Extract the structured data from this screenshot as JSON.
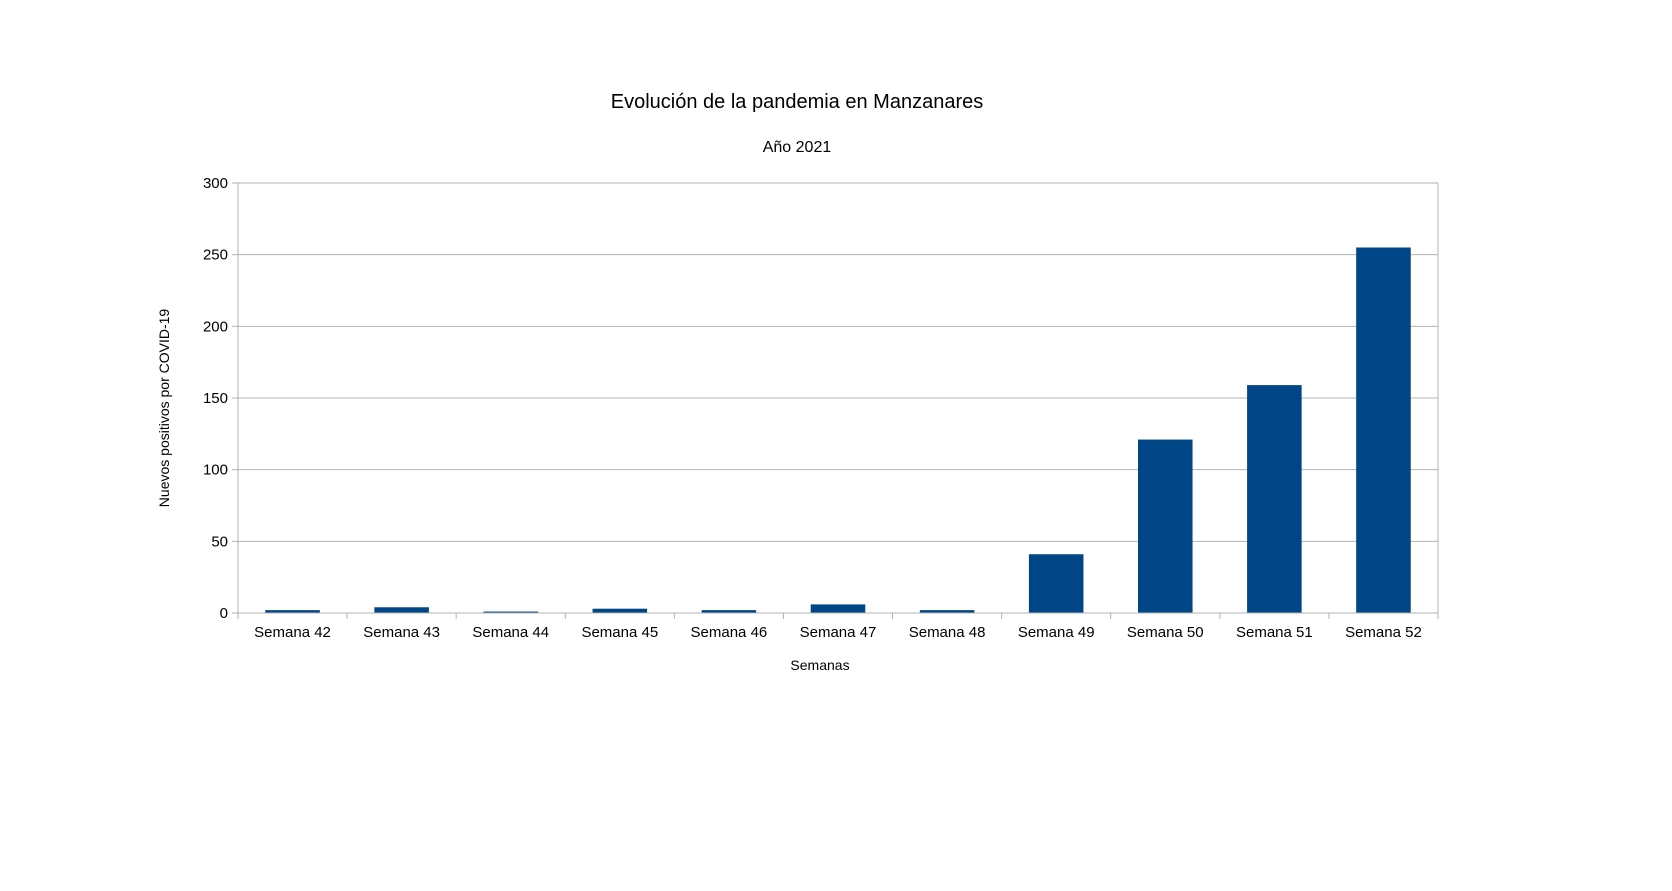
{
  "chart_data": {
    "type": "bar",
    "title": "Evolución de la pandemia en Manzanares",
    "subtitle": "Año 2021",
    "xlabel": "Semanas",
    "ylabel": "Nuevos positivos por COVID-19",
    "categories": [
      "Semana 42",
      "Semana 43",
      "Semana 44",
      "Semana 45",
      "Semana 46",
      "Semana 47",
      "Semana 48",
      "Semana 49",
      "Semana 50",
      "Semana 51",
      "Semana 52"
    ],
    "values": [
      2,
      4,
      1,
      3,
      2,
      6,
      2,
      41,
      121,
      159,
      255
    ],
    "ylim": [
      0,
      300
    ],
    "yticks": [
      0,
      50,
      100,
      150,
      200,
      250,
      300
    ],
    "grid": true,
    "legend": "none",
    "bar_color": "#004586"
  }
}
